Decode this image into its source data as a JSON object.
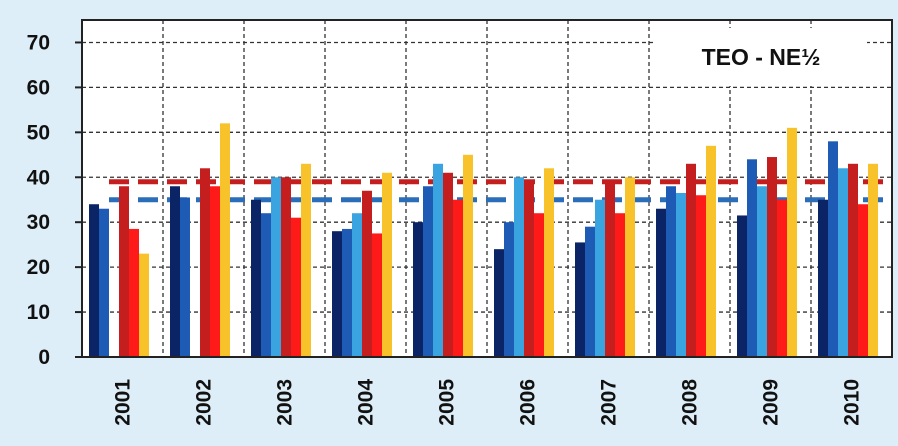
{
  "chart_data": {
    "type": "bar",
    "title": "TEO - NE½",
    "categories": [
      "2001",
      "2002",
      "2003",
      "2004",
      "2005",
      "2006",
      "2007",
      "2008",
      "2009",
      "2010"
    ],
    "ylim": [
      0,
      75
    ],
    "yticks": [
      0,
      10,
      20,
      30,
      40,
      50,
      60,
      70
    ],
    "grid": true,
    "legend": "none",
    "series": [
      {
        "color": "#0b2466",
        "values": [
          34,
          38,
          35,
          28,
          30,
          24,
          25.5,
          33,
          31.5,
          35
        ]
      },
      {
        "color": "#1e5bb5",
        "values": [
          33,
          35.5,
          32,
          28.5,
          38,
          30,
          29,
          38,
          44,
          48
        ]
      },
      {
        "color": "#3aa4e0",
        "values": [
          null,
          null,
          40,
          32,
          43,
          40,
          35,
          36.5,
          38,
          42
        ]
      },
      {
        "color": "#c41e1e",
        "values": [
          38,
          42,
          40,
          37,
          41,
          39,
          39,
          43,
          44.5,
          43
        ]
      },
      {
        "color": "#ff1a1a",
        "values": [
          28.5,
          38,
          31,
          27.5,
          35,
          32,
          32,
          36,
          35,
          34
        ]
      },
      {
        "color": "#f7c22a",
        "values": [
          23,
          52,
          43,
          41,
          45,
          42,
          40,
          47,
          51,
          43
        ]
      }
    ],
    "reference_lines": [
      {
        "value": 39,
        "color": "#c41e1e",
        "style": "dashed"
      },
      {
        "value": 35,
        "color": "#2a6db8",
        "style": "dashed"
      }
    ]
  }
}
